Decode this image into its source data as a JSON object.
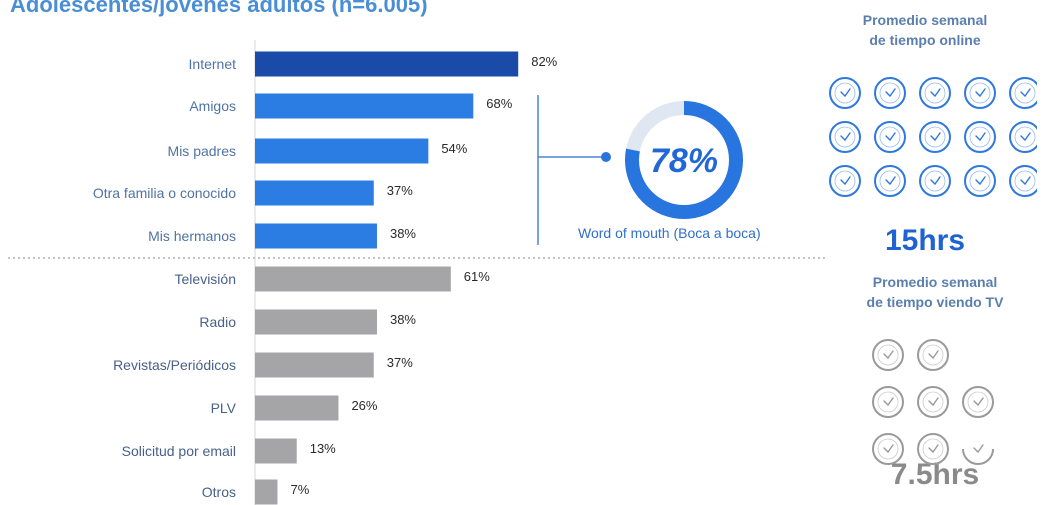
{
  "title": "Adolescentes/jóvenes adultos (n=6.005)",
  "colors": {
    "internet": "#1a4ba8",
    "social": "#2b7de3",
    "media": "#a5a5a8",
    "label_blue": "#4f73a5",
    "label_gray": "#48608a",
    "ring": "#2875e0",
    "clock_blue": "#2f78de",
    "clock_gray": "#9a9a9a"
  },
  "chart_data": {
    "type": "bar",
    "orientation": "horizontal",
    "categories": [
      "Internet",
      "Amigos",
      "Mis padres",
      "Otra familia o conocido",
      "Mis hermanos",
      "Televisión",
      "Radio",
      "Revistas/Periódicos",
      "PLV",
      "Solicitud por email",
      "Otros"
    ],
    "values": [
      82,
      68,
      54,
      37,
      38,
      61,
      38,
      37,
      26,
      13,
      7
    ],
    "value_labels": [
      "82%",
      "68%",
      "54%",
      "37%",
      "38%",
      "61%",
      "38%",
      "37%",
      "26%",
      "13%",
      "7%"
    ],
    "groups": [
      "internet",
      "social",
      "social",
      "social",
      "social",
      "media",
      "media",
      "media",
      "media",
      "media",
      "media"
    ],
    "unit": "%",
    "xlim": [
      0,
      100
    ],
    "grid": false
  },
  "word_of_mouth": {
    "value": 78,
    "label": "78%",
    "caption": "Word of mouth (Boca a boca)"
  },
  "online": {
    "heading_line1": "Promedio semanal",
    "heading_line2": "de tiempo online",
    "hours_label": "15hrs",
    "clock_icon": "clock-icon",
    "clock_count": 15
  },
  "tv": {
    "heading_line1": "Promedio semanal",
    "heading_line2": "de tiempo viendo TV",
    "hours_label": "7.5hrs",
    "clock_icon": "clock-icon",
    "clock_count": 7.5
  }
}
